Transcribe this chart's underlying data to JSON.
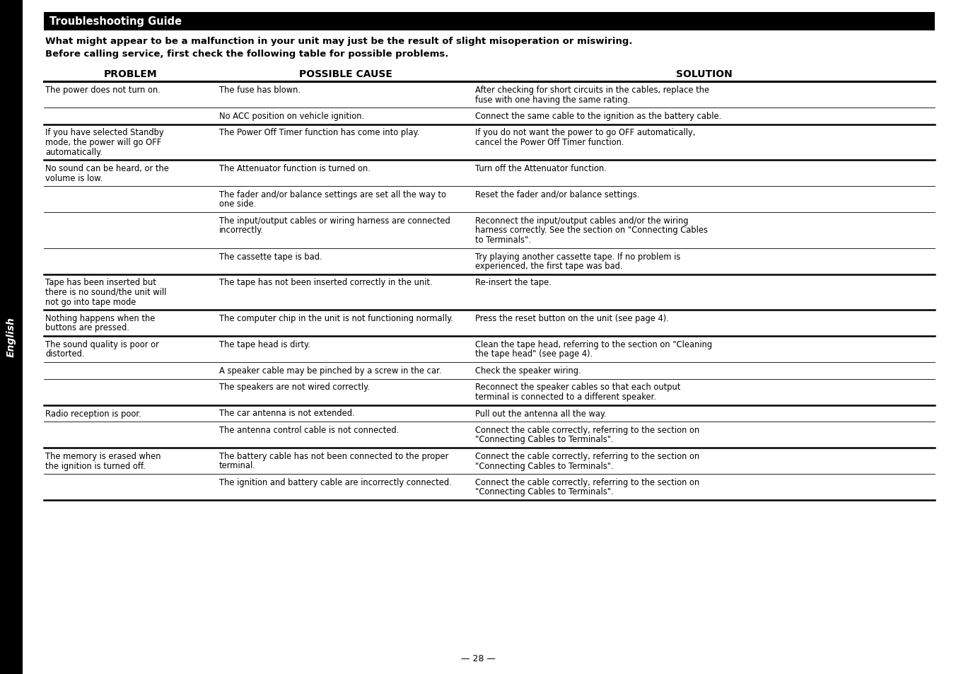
{
  "title_bar_text": "Troubleshooting Guide",
  "title_bar_bg": "#000000",
  "title_bar_text_color": "#ffffff",
  "intro_line1": "What might appear to be a malfunction in your unit may just be the result of slight misoperation or miswiring.",
  "intro_line2": "Before calling service, first check the following table for possible problems.",
  "col_headers": [
    "PROBLEM",
    "POSSIBLE CAUSE",
    "SOLUTION"
  ],
  "side_label": "English",
  "page_number": "— 28 —",
  "bg_color": "#ffffff",
  "text_color": "#000000",
  "rows": [
    {
      "problem": "The power does not turn on.",
      "cause": "The fuse has blown.",
      "solution": "After checking for short circuits in the cables, replace the\nfuse with one having the same rating.",
      "thick_top": true
    },
    {
      "problem": "",
      "cause": "No ACC position on vehicle ignition.",
      "solution": "Connect the same cable to the ignition as the battery cable.",
      "thick_top": false
    },
    {
      "problem": "If you have selected Standby\nmode, the power will go OFF\nautomatically.",
      "cause": "The Power Off Timer function has come into play.",
      "solution": "If you do not want the power to go OFF automatically,\ncancel the Power Off Timer function.",
      "thick_top": true
    },
    {
      "problem": "No sound can be heard, or the\nvolume is low.",
      "cause": "The Attenuator function is turned on.",
      "solution": "Turn off the Attenuator function.",
      "thick_top": true
    },
    {
      "problem": "",
      "cause": "The fader and/or balance settings are set all the way to\none side.",
      "solution": "Reset the fader and/or balance settings.",
      "thick_top": false
    },
    {
      "problem": "",
      "cause": "The input/output cables or wiring harness are connected\nincorrectly.",
      "solution": "Reconnect the input/output cables and/or the wiring\nharness correctly. See the section on \"Connecting Cables\nto Terminals\".",
      "thick_top": false
    },
    {
      "problem": "",
      "cause": "The cassette tape is bad.",
      "solution": "Try playing another cassette tape. If no problem is\nexperienced, the first tape was bad.",
      "thick_top": false
    },
    {
      "problem": "Tape has been inserted but\nthere is no sound/the unit will\nnot go into tape mode",
      "cause": "The tape has not been inserted correctly in the unit.",
      "solution": "Re-insert the tape.",
      "thick_top": true
    },
    {
      "problem": "Nothing happens when the\nbuttons are pressed.",
      "cause": "The computer chip in the unit is not functioning normally.",
      "solution": "Press the reset button on the unit (see page 4).",
      "thick_top": true
    },
    {
      "problem": "The sound quality is poor or\ndistorted.",
      "cause": "The tape head is dirty.",
      "solution": "Clean the tape head, referring to the section on \"Cleaning\nthe tape head\" (see page 4).",
      "thick_top": true
    },
    {
      "problem": "",
      "cause": "A speaker cable may be pinched by a screw in the car.",
      "solution": "Check the speaker wiring.",
      "thick_top": false
    },
    {
      "problem": "",
      "cause": "The speakers are not wired correctly.",
      "solution": "Reconnect the speaker cables so that each output\nterminal is connected to a different speaker.",
      "thick_top": false
    },
    {
      "problem": "Radio reception is poor.",
      "cause": "The car antenna is not extended.",
      "solution": "Pull out the antenna all the way.",
      "thick_top": true
    },
    {
      "problem": "",
      "cause": "The antenna control cable is not connected.",
      "solution": "Connect the cable correctly, referring to the section on\n\"Connecting Cables to Terminals\".",
      "thick_top": false
    },
    {
      "problem": "The memory is erased when\nthe ignition is turned off.",
      "cause": "The battery cable has not been connected to the proper\nterminal.",
      "solution": "Connect the cable correctly, referring to the section on\n\"Connecting Cables to Terminals\".",
      "thick_top": true
    },
    {
      "problem": "",
      "cause": "The ignition and battery cable are incorrectly connected.",
      "solution": "Connect the cable correctly, referring to the section on\n\"Connecting Cables to Terminals\".",
      "thick_top": false
    }
  ]
}
